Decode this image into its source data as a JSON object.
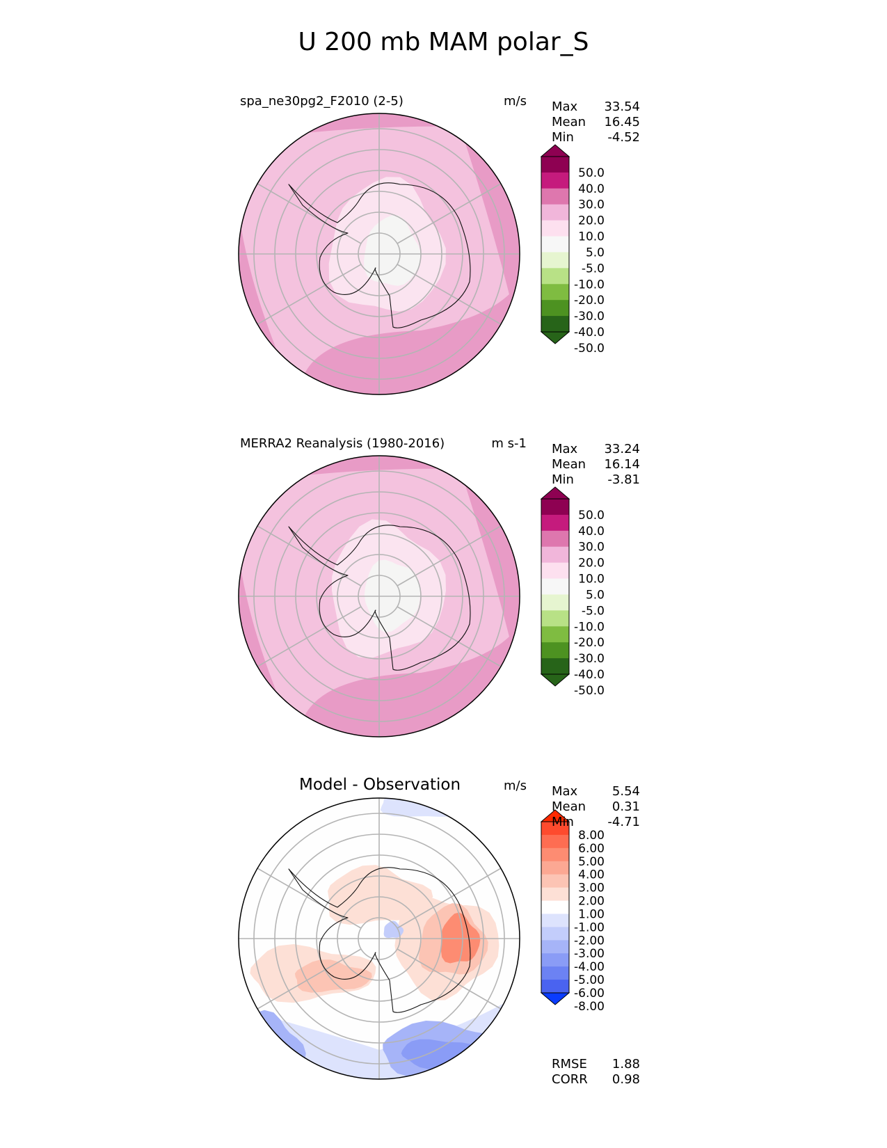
{
  "figure_title": "U 200 mb MAM polar_S",
  "panels": [
    {
      "title": "spa_ne30pg2_F2010 (2-5)",
      "units": "m/s",
      "stats": [
        {
          "label": "Max",
          "value": "33.54"
        },
        {
          "label": "Mean",
          "value": "16.45"
        },
        {
          "label": "Min",
          "value": "-4.52"
        }
      ],
      "colorbar": {
        "labels": [
          "50.0",
          "40.0",
          "30.0",
          "20.0",
          "10.0",
          "5.0",
          "-5.0",
          "-10.0",
          "-20.0",
          "-30.0",
          "-40.0",
          "-50.0"
        ],
        "colors": [
          "#8e0152",
          "#c51b7d",
          "#de77ae",
          "#f1b6da",
          "#fde0ef",
          "#f7f7f7",
          "#e6f5d0",
          "#b8e186",
          "#7fbc41",
          "#4d9221",
          "#276419"
        ],
        "over_color": "#8e0152",
        "under_color": "#276419"
      },
      "field": {
        "outer": "#e89bc6",
        "mid": "#f4c2de",
        "inner": "#fbe4f0",
        "core": "#f5f5f4"
      }
    },
    {
      "title": "MERRA2 Reanalysis (1980-2016)",
      "units": "m s-1",
      "stats": [
        {
          "label": "Max",
          "value": "33.24"
        },
        {
          "label": "Mean",
          "value": "16.14"
        },
        {
          "label": "Min",
          "value": "-3.81"
        }
      ],
      "colorbar": {
        "labels": [
          "50.0",
          "40.0",
          "30.0",
          "20.0",
          "10.0",
          "5.0",
          "-5.0",
          "-10.0",
          "-20.0",
          "-30.0",
          "-40.0",
          "-50.0"
        ],
        "colors": [
          "#8e0152",
          "#c51b7d",
          "#de77ae",
          "#f1b6da",
          "#fde0ef",
          "#f7f7f7",
          "#e6f5d0",
          "#b8e186",
          "#7fbc41",
          "#4d9221",
          "#276419"
        ],
        "over_color": "#8e0152",
        "under_color": "#276419"
      },
      "field": {
        "outer": "#e89bc6",
        "mid": "#f4c2de",
        "inner": "#fbe4f0",
        "core": "#f5f5f4"
      }
    },
    {
      "title": "Model - Observation",
      "units": "m/s",
      "stats": [
        {
          "label": "Max",
          "value": "5.54"
        },
        {
          "label": "Mean",
          "value": "0.31"
        },
        {
          "label": "Min",
          "value": "-4.71"
        }
      ],
      "extra_stats": [
        {
          "label": "RMSE",
          "value": "1.88"
        },
        {
          "label": "CORR",
          "value": "0.98"
        }
      ],
      "colorbar": {
        "labels": [
          "8.00",
          "6.00",
          "5.00",
          "4.00",
          "3.00",
          "2.00",
          "1.00",
          "-1.00",
          "-2.00",
          "-3.00",
          "-4.00",
          "-5.00",
          "-6.00",
          "-8.00"
        ],
        "colors": [
          "#fe4b2e",
          "#fe6d52",
          "#fd8c72",
          "#fca893",
          "#fcc4b4",
          "#fde0d6",
          "#ffffff",
          "#dde3fd",
          "#c3cdfb",
          "#a6b4f8",
          "#8a9cf6",
          "#6c82f3",
          "#4a63f0"
        ],
        "over_color": "#ff2a00",
        "under_color": "#0a3cff"
      }
    }
  ],
  "chart_data": {
    "type": "heatmap",
    "projection": "south polar stereographic",
    "variable": "U",
    "level": "200 mb",
    "season": "MAM",
    "region": "polar_S",
    "panels": [
      {
        "name": "spa_ne30pg2_F2010 (2-5)",
        "max": 33.54,
        "mean": 16.45,
        "min": -4.52,
        "levels": [
          -50,
          -40,
          -30,
          -20,
          -10,
          -5,
          5,
          10,
          20,
          30,
          40,
          50
        ]
      },
      {
        "name": "MERRA2 Reanalysis (1980-2016)",
        "max": 33.24,
        "mean": 16.14,
        "min": -3.81,
        "levels": [
          -50,
          -40,
          -30,
          -20,
          -10,
          -5,
          5,
          10,
          20,
          30,
          40,
          50
        ]
      },
      {
        "name": "Model - Observation",
        "max": 5.54,
        "mean": 0.31,
        "min": -4.71,
        "rmse": 1.88,
        "corr": 0.98,
        "levels": [
          -8,
          -6,
          -5,
          -4,
          -3,
          -2,
          -1,
          1,
          2,
          3,
          4,
          5,
          6,
          8
        ]
      }
    ]
  }
}
